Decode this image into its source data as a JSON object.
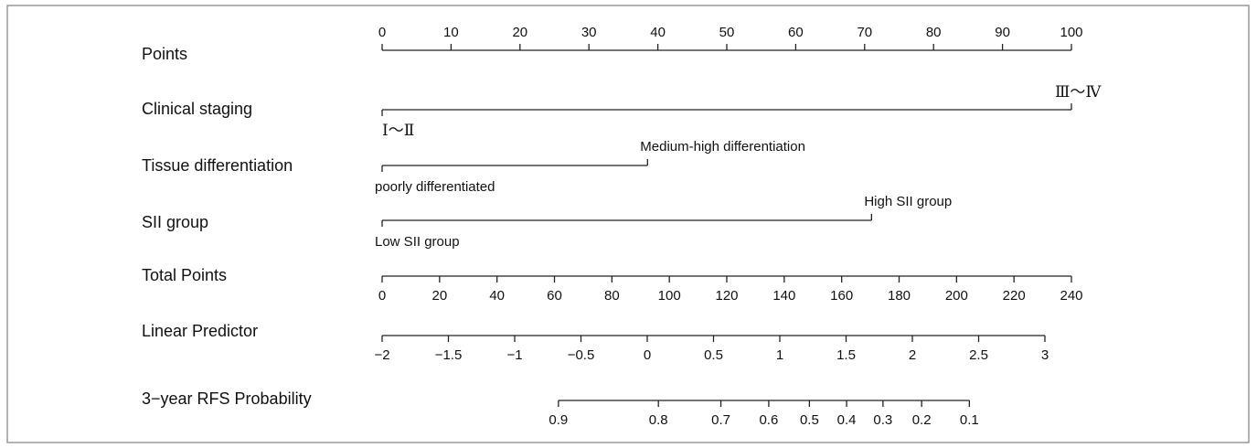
{
  "chart_data": {
    "type": "nomogram",
    "rows": [
      {
        "kind": "axis",
        "label": "Points",
        "xlim": [
          0,
          100
        ],
        "xticks": [
          0,
          10,
          20,
          30,
          40,
          50,
          60,
          70,
          80,
          90,
          100
        ]
      },
      {
        "kind": "factor",
        "label": "Clinical staging",
        "levels": [
          {
            "name": "Ⅰ～Ⅱ",
            "points": 0
          },
          {
            "name": "Ⅲ～Ⅳ",
            "points": 100
          }
        ]
      },
      {
        "kind": "factor",
        "label": "Tissue differentiation",
        "levels": [
          {
            "name": "poorly differentiated",
            "points": 0
          },
          {
            "name": "Medium-high differentiation",
            "points": 38.5
          }
        ]
      },
      {
        "kind": "factor",
        "label": "SII group",
        "levels": [
          {
            "name": "Low SII group",
            "points": 0
          },
          {
            "name": "High SII group",
            "points": 71
          }
        ]
      },
      {
        "kind": "axis",
        "label": "Total Points",
        "xlim": [
          0,
          240
        ],
        "xticks": [
          0,
          20,
          40,
          60,
          80,
          100,
          120,
          140,
          160,
          180,
          200,
          220,
          240
        ]
      },
      {
        "kind": "axis",
        "label": "Linear Predictor",
        "xlim": [
          -2,
          3
        ],
        "xticks": [
          {
            "value": -2,
            "label": "−2"
          },
          {
            "value": -1.5,
            "label": "−1.5"
          },
          {
            "value": -1,
            "label": "−1"
          },
          {
            "value": -0.5,
            "label": "−0.5"
          },
          0,
          0.5,
          1,
          1.5,
          2,
          2.5,
          3
        ]
      },
      {
        "kind": "probability",
        "label": "3−year RFS Probability",
        "xlim": [
          0.9,
          0.1
        ],
        "linear_predictor_range": [
          -0.67,
          2.43
        ],
        "scale": "cloglog",
        "xticks": [
          0.9,
          0.8,
          0.7,
          0.6,
          0.5,
          0.4,
          0.3,
          0.2,
          0.1
        ]
      }
    ]
  }
}
